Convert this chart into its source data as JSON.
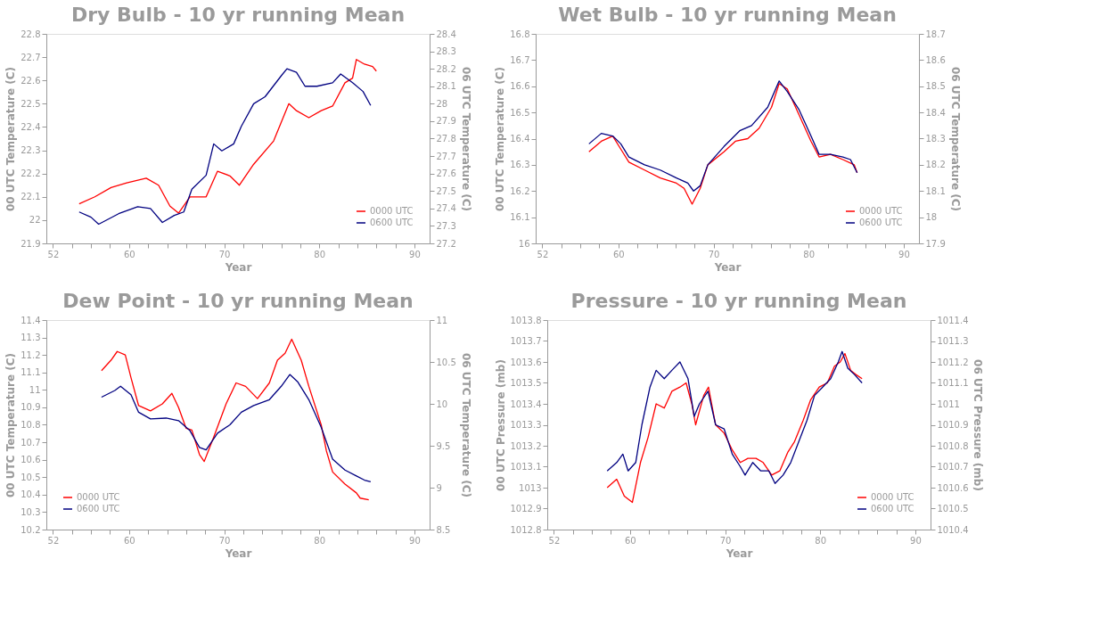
{
  "chart_data": [
    {
      "type": "line",
      "title": "Dry Bulb - 10 yr running Mean",
      "xlabel": "Year",
      "ylabel": "00 UTC Temperature (C)",
      "y2label": "06 UTC Temperature (C)",
      "legend": "bottom right",
      "xlim": [
        51.3,
        91.6
      ],
      "xticks": [
        52,
        {
          "value": 54,
          "label": null
        },
        {
          "value": 56,
          "label": null
        },
        {
          "value": 58,
          "label": null
        },
        60,
        {
          "value": 62,
          "label": null
        },
        {
          "value": 64,
          "label": null
        },
        {
          "value": 66,
          "label": null
        },
        {
          "value": 68,
          "label": null
        },
        70,
        {
          "value": 72,
          "label": null
        },
        {
          "value": 74,
          "label": null
        },
        {
          "value": 76,
          "label": null
        },
        {
          "value": 78,
          "label": null
        },
        80,
        {
          "value": 82,
          "label": null
        },
        {
          "value": 84,
          "label": null
        },
        {
          "value": 86,
          "label": null
        },
        {
          "value": 88,
          "label": null
        },
        90
      ],
      "ylim": [
        21.9,
        22.8
      ],
      "yticks": [
        21.9,
        22,
        22.1,
        22.2,
        22.3,
        22.4,
        22.5,
        22.6,
        22.7,
        22.8
      ],
      "y2lim": [
        27.2,
        28.4
      ],
      "y2ticks": [
        27.2,
        27.3,
        27.4,
        27.5,
        27.6,
        27.7,
        27.8,
        27.9,
        28,
        28.1,
        28.2,
        28.3,
        28.4
      ],
      "series": [
        {
          "name": "0000 UTC",
          "color": "#ff0000",
          "x": [
            54.75,
            56.4,
            58.1,
            59.75,
            61.8,
            63.1,
            64.3,
            65.2,
            66.4,
            68.1,
            69.3,
            70.6,
            71.6,
            73.1,
            75.2,
            76.8,
            77.6,
            78.9,
            80.2,
            81.4,
            82.7,
            83.5,
            83.9,
            84.75,
            85.6,
            86.0
          ],
          "values": [
            22.07,
            22.1,
            22.14,
            22.16,
            22.18,
            22.15,
            22.06,
            22.03,
            22.1,
            22.1,
            22.21,
            22.19,
            22.15,
            22.24,
            22.34,
            22.5,
            22.47,
            22.44,
            22.47,
            22.49,
            22.59,
            22.61,
            22.69,
            22.67,
            22.66,
            22.64
          ]
        },
        {
          "name": "0600 UTC",
          "color": "#000080",
          "axis": "y2",
          "x": [
            54.75,
            56.0,
            56.8,
            58.9,
            60.9,
            62.25,
            63.5,
            64.75,
            65.75,
            66.6,
            68.1,
            68.9,
            69.75,
            71.0,
            71.8,
            73.1,
            74.3,
            76.0,
            76.6,
            77.6,
            78.5,
            79.75,
            81.4,
            82.25,
            83.5,
            84.6,
            85.4
          ],
          "values": [
            27.38,
            27.35,
            27.31,
            27.37,
            27.41,
            27.4,
            27.32,
            27.36,
            27.38,
            27.51,
            27.59,
            27.77,
            27.73,
            27.77,
            27.87,
            28.0,
            28.04,
            28.16,
            28.2,
            28.18,
            28.1,
            28.1,
            28.12,
            28.17,
            28.12,
            28.07,
            27.99
          ]
        }
      ]
    },
    {
      "type": "line",
      "title": "Wet Bulb - 10 yr running Mean",
      "xlabel": "Year",
      "ylabel": "00 UTC Temperature (C)",
      "y2label": "06 UTC Temperature (C)",
      "legend": "bottom right",
      "xlim": [
        51.3,
        91.6
      ],
      "xticks": [
        52,
        {
          "value": 54,
          "label": null
        },
        {
          "value": 56,
          "label": null
        },
        {
          "value": 58,
          "label": null
        },
        60,
        {
          "value": 62,
          "label": null
        },
        {
          "value": 64,
          "label": null
        },
        {
          "value": 66,
          "label": null
        },
        {
          "value": 68,
          "label": null
        },
        70,
        {
          "value": 72,
          "label": null
        },
        {
          "value": 74,
          "label": null
        },
        {
          "value": 76,
          "label": null
        },
        {
          "value": 78,
          "label": null
        },
        80,
        {
          "value": 82,
          "label": null
        },
        {
          "value": 84,
          "label": null
        },
        {
          "value": 86,
          "label": null
        },
        {
          "value": 88,
          "label": null
        },
        90
      ],
      "ylim": [
        16.0,
        16.8
      ],
      "yticks": [
        16,
        16.1,
        16.2,
        16.3,
        16.4,
        16.5,
        16.6,
        16.7,
        16.8
      ],
      "y2lim": [
        17.9,
        18.7
      ],
      "y2ticks": [
        17.9,
        18,
        18.1,
        18.2,
        18.3,
        18.4,
        18.5,
        18.6,
        18.7
      ],
      "series": [
        {
          "name": "0000 UTC",
          "color": "#ff0000",
          "x": [
            56.9,
            58.2,
            59.4,
            60.25,
            61.1,
            62.75,
            64.4,
            66.1,
            66.9,
            67.75,
            68.6,
            69.4,
            71.1,
            72.3,
            73.6,
            74.8,
            76.1,
            76.9,
            77.75,
            79.0,
            80.25,
            81.1,
            82.3,
            83.6,
            84.8,
            85.1
          ],
          "values": [
            16.35,
            16.39,
            16.41,
            16.36,
            16.31,
            16.28,
            16.25,
            16.23,
            16.21,
            16.15,
            16.21,
            16.3,
            16.35,
            16.39,
            16.4,
            16.44,
            16.52,
            16.61,
            16.59,
            16.49,
            16.39,
            16.33,
            16.34,
            16.32,
            16.3,
            16.27
          ]
        },
        {
          "name": "0600 UTC",
          "color": "#000080",
          "axis": "y2",
          "x": [
            56.9,
            58.2,
            59.4,
            60.25,
            61.1,
            62.75,
            64.4,
            66.1,
            67.3,
            67.9,
            68.6,
            69.4,
            71.1,
            72.75,
            74.0,
            75.7,
            76.9,
            77.75,
            79.0,
            80.25,
            81.1,
            82.3,
            83.6,
            84.4,
            85.1
          ],
          "values": [
            18.28,
            18.32,
            18.31,
            18.28,
            18.23,
            18.2,
            18.18,
            18.15,
            18.13,
            18.1,
            18.12,
            18.2,
            18.27,
            18.33,
            18.35,
            18.42,
            18.52,
            18.48,
            18.41,
            18.31,
            18.24,
            18.24,
            18.23,
            18.22,
            18.17
          ]
        }
      ]
    },
    {
      "type": "line",
      "title": "Dew Point - 10 yr running Mean",
      "xlabel": "Year",
      "ylabel": "00 UTC Temperature (C)",
      "y2label": "06 UTC Temperature (C)",
      "legend": "bottom left",
      "xlim": [
        51.3,
        91.6
      ],
      "xticks": [
        52,
        {
          "value": 54,
          "label": null
        },
        {
          "value": 56,
          "label": null
        },
        {
          "value": 58,
          "label": null
        },
        60,
        {
          "value": 62,
          "label": null
        },
        {
          "value": 64,
          "label": null
        },
        {
          "value": 66,
          "label": null
        },
        {
          "value": 68,
          "label": null
        },
        70,
        {
          "value": 72,
          "label": null
        },
        {
          "value": 74,
          "label": null
        },
        {
          "value": 76,
          "label": null
        },
        {
          "value": 78,
          "label": null
        },
        80,
        {
          "value": 82,
          "label": null
        },
        {
          "value": 84,
          "label": null
        },
        {
          "value": 86,
          "label": null
        },
        {
          "value": 88,
          "label": null
        },
        90
      ],
      "ylim": [
        10.2,
        11.4
      ],
      "yticks": [
        10.2,
        10.3,
        10.4,
        10.5,
        10.6,
        10.7,
        10.8,
        10.9,
        11,
        11.1,
        11.2,
        11.3,
        11.4
      ],
      "y2lim": [
        8.5,
        11
      ],
      "y2ticks": [
        8.5,
        9,
        9.5,
        10,
        10.5,
        11
      ],
      "series": [
        {
          "name": "0000 UTC",
          "color": "#ff0000",
          "x": [
            57.1,
            58.1,
            58.75,
            59.6,
            60.2,
            61.0,
            62.25,
            63.5,
            64.5,
            65.2,
            66.0,
            66.6,
            67.4,
            67.9,
            68.9,
            70.2,
            71.25,
            72.25,
            73.5,
            74.75,
            75.6,
            76.4,
            77.1,
            78.1,
            78.9,
            80.2,
            80.75,
            81.4,
            82.7,
            83.9,
            84.3,
            85.2
          ],
          "values": [
            11.11,
            11.17,
            11.22,
            11.2,
            11.07,
            10.91,
            10.88,
            10.92,
            10.98,
            10.9,
            10.78,
            10.77,
            10.63,
            10.59,
            10.73,
            10.92,
            11.04,
            11.02,
            10.95,
            11.04,
            11.17,
            11.21,
            11.29,
            11.17,
            11.02,
            10.8,
            10.65,
            10.53,
            10.46,
            10.41,
            10.38,
            10.37
          ]
        },
        {
          "name": "0600 UTC",
          "color": "#000080",
          "axis": "y2",
          "x": [
            57.1,
            58.5,
            59.1,
            60.2,
            61.0,
            62.25,
            63.9,
            65.2,
            66.4,
            67.4,
            68.1,
            69.3,
            70.6,
            71.8,
            73.1,
            74.75,
            76.0,
            76.9,
            77.75,
            78.9,
            80.2,
            81.4,
            82.7,
            83.9,
            84.75,
            85.4
          ],
          "values": [
            10.08,
            10.16,
            10.21,
            10.11,
            9.9,
            9.82,
            9.83,
            9.8,
            9.68,
            9.48,
            9.45,
            9.65,
            9.75,
            9.9,
            9.98,
            10.05,
            10.21,
            10.35,
            10.26,
            10.05,
            9.72,
            9.34,
            9.21,
            9.14,
            9.09,
            9.07
          ]
        }
      ]
    },
    {
      "type": "line",
      "title": "Pressure - 10 yr running Mean",
      "xlabel": "Year",
      "ylabel": "00 UTC Pressure (mb)",
      "y2label": "06 UTC Pressure (mb)",
      "legend": "bottom right",
      "xlim": [
        51.3,
        91.6
      ],
      "xticks": [
        52,
        {
          "value": 54,
          "label": null
        },
        {
          "value": 56,
          "label": null
        },
        {
          "value": 58,
          "label": null
        },
        60,
        {
          "value": 62,
          "label": null
        },
        {
          "value": 64,
          "label": null
        },
        {
          "value": 66,
          "label": null
        },
        {
          "value": 68,
          "label": null
        },
        70,
        {
          "value": 72,
          "label": null
        },
        {
          "value": 74,
          "label": null
        },
        {
          "value": 76,
          "label": null
        },
        {
          "value": 78,
          "label": null
        },
        80,
        {
          "value": 82,
          "label": null
        },
        {
          "value": 84,
          "label": null
        },
        {
          "value": 86,
          "label": null
        },
        {
          "value": 88,
          "label": null
        },
        90
      ],
      "ylim": [
        1012.8,
        1013.8
      ],
      "yticks": [
        1012.8,
        1012.9,
        1013,
        1013.1,
        1013.2,
        1013.3,
        1013.4,
        1013.5,
        1013.6,
        1013.7,
        1013.8
      ],
      "y2lim": [
        1010.4,
        1011.4
      ],
      "y2ticks": [
        1010.4,
        1010.5,
        1010.6,
        1010.7,
        1010.8,
        1010.9,
        1011,
        1011.1,
        1011.2,
        1011.3,
        1011.4
      ],
      "series": [
        {
          "name": "0000 UTC",
          "color": "#ff0000",
          "x": [
            57.6,
            58.6,
            59.4,
            60.25,
            61.1,
            61.9,
            62.75,
            63.6,
            64.4,
            65.25,
            65.9,
            66.5,
            66.9,
            67.75,
            68.25,
            69.0,
            69.9,
            70.75,
            71.6,
            72.4,
            73.25,
            74.0,
            74.9,
            75.75,
            76.6,
            77.3,
            78.2,
            79.0,
            79.9,
            80.75,
            81.5,
            82.1,
            82.6,
            83.2,
            83.75,
            84.4
          ],
          "values": [
            1013.0,
            1013.04,
            1012.96,
            1012.93,
            1013.12,
            1013.24,
            1013.4,
            1013.38,
            1013.46,
            1013.48,
            1013.5,
            1013.4,
            1013.3,
            1013.44,
            1013.48,
            1013.3,
            1013.26,
            1013.18,
            1013.12,
            1013.14,
            1013.14,
            1013.12,
            1013.06,
            1013.08,
            1013.17,
            1013.22,
            1013.32,
            1013.42,
            1013.48,
            1013.5,
            1013.58,
            1013.6,
            1013.64,
            1013.56,
            1013.54,
            1013.52
          ]
        },
        {
          "name": "0600 UTC",
          "color": "#000080",
          "axis": "y2",
          "x": [
            57.6,
            58.6,
            59.25,
            59.8,
            60.6,
            61.25,
            62.1,
            62.75,
            63.6,
            64.4,
            65.25,
            66.1,
            66.75,
            67.3,
            68.2,
            69.0,
            69.9,
            70.75,
            71.6,
            72.1,
            72.9,
            73.75,
            74.6,
            75.25,
            76.1,
            76.9,
            77.75,
            78.6,
            79.4,
            80.25,
            81.1,
            81.9,
            82.3,
            82.9,
            83.6,
            84.4
          ],
          "values": [
            1010.68,
            1010.72,
            1010.76,
            1010.68,
            1010.72,
            1010.9,
            1011.08,
            1011.16,
            1011.12,
            1011.16,
            1011.2,
            1011.12,
            1010.94,
            1011.0,
            1011.06,
            1010.9,
            1010.88,
            1010.76,
            1010.7,
            1010.66,
            1010.72,
            1010.68,
            1010.68,
            1010.62,
            1010.66,
            1010.72,
            1010.82,
            1010.92,
            1011.04,
            1011.08,
            1011.12,
            1011.2,
            1011.25,
            1011.17,
            1011.14,
            1011.1
          ]
        }
      ]
    }
  ]
}
